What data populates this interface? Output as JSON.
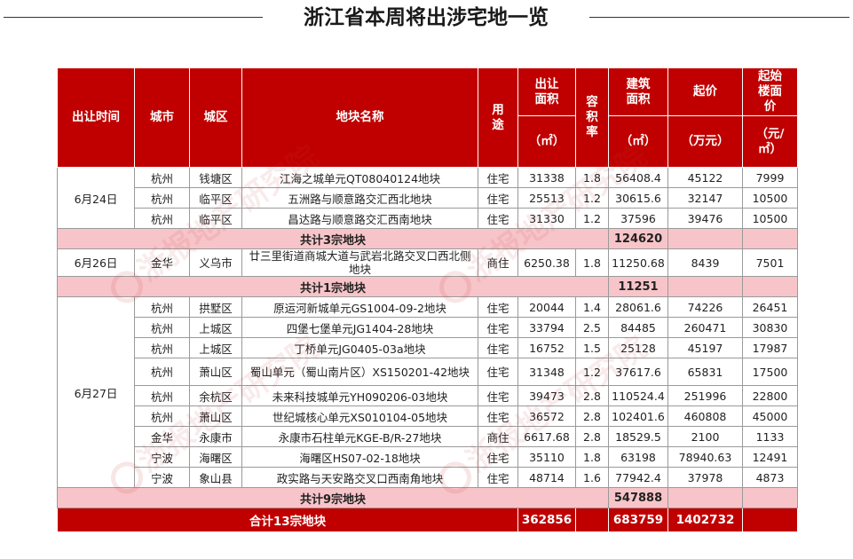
{
  "title": "浙江省本周将出涉宅地一览",
  "watermark": "浙报地产研究院",
  "colors": {
    "header_bg": "#c00000",
    "subtotal_bg": "#f7c5c9"
  },
  "headers": {
    "date": "出让时间",
    "city": "城市",
    "district": "城区",
    "plot_name": "地块名称",
    "usage": "用途",
    "area": "出让面积",
    "area_unit": "（㎡）",
    "far": "容积率",
    "build_area": "建筑面积",
    "build_area_unit": "（㎡）",
    "start_price": "起价",
    "start_price_unit": "（万元）",
    "floor_price": "起始楼面价",
    "floor_price_unit": "（元/㎡）"
  },
  "groups": [
    {
      "date": "6月24日",
      "rows": [
        {
          "city": "杭州",
          "district": "钱塘区",
          "name": "江海之城单元QT08040124地块",
          "usage": "住宅",
          "area": "31338",
          "far": "1.8",
          "build": "56408.4",
          "price": "45122",
          "floor": "7999"
        },
        {
          "city": "杭州",
          "district": "临平区",
          "name": "五洲路与顺意路交汇西北地块",
          "usage": "住宅",
          "area": "25513",
          "far": "1.2",
          "build": "30615.6",
          "price": "32147",
          "floor": "10500"
        },
        {
          "city": "杭州",
          "district": "临平区",
          "name": "昌达路与顺意路交汇西南地块",
          "usage": "住宅",
          "area": "31330",
          "far": "1.2",
          "build": "37596",
          "price": "39476",
          "floor": "10500"
        }
      ],
      "subtotal_label": "共计3宗地块",
      "subtotal_build": "124620"
    },
    {
      "date": "6月26日",
      "rows": [
        {
          "city": "金华",
          "district": "义乌市",
          "name": "廿三里街道商城大道与武岩北路交叉口西北侧地块",
          "usage": "商住",
          "area": "6250.38",
          "far": "1.8",
          "build": "11250.68",
          "price": "8439",
          "floor": "7501"
        }
      ],
      "subtotal_label": "共计1宗地块",
      "subtotal_build": "11251"
    },
    {
      "date": "6月27日",
      "rows": [
        {
          "city": "杭州",
          "district": "拱墅区",
          "name": "原运河新城单元GS1004-09-2地块",
          "usage": "住宅",
          "area": "20044",
          "far": "1.4",
          "build": "28061.6",
          "price": "74226",
          "floor": "26451"
        },
        {
          "city": "杭州",
          "district": "上城区",
          "name": "四堡七堡单元JG1404-28地块",
          "usage": "住宅",
          "area": "33794",
          "far": "2.5",
          "build": "84485",
          "price": "260471",
          "floor": "30830"
        },
        {
          "city": "杭州",
          "district": "上城区",
          "name": "丁桥单元JG0405-03a地块",
          "usage": "住宅",
          "area": "16752",
          "far": "1.5",
          "build": "25128",
          "price": "45197",
          "floor": "17987"
        },
        {
          "city": "杭州",
          "district": "萧山区",
          "name": "蜀山单元（蜀山南片区）XS150201-42地块",
          "usage": "住宅",
          "area": "31348",
          "far": "1.2",
          "build": "37617.6",
          "price": "65831",
          "floor": "17500"
        },
        {
          "city": "杭州",
          "district": "余杭区",
          "name": "未来科技城单元YH090206-03地块",
          "usage": "住宅",
          "area": "39473",
          "far": "2.8",
          "build": "110524.4",
          "price": "251996",
          "floor": "22800"
        },
        {
          "city": "杭州",
          "district": "萧山区",
          "name": "世纪城核心单元XS010104-05地块",
          "usage": "住宅",
          "area": "36572",
          "far": "2.8",
          "build": "102401.6",
          "price": "460808",
          "floor": "45000"
        },
        {
          "city": "金华",
          "district": "永康市",
          "name": "永康市石柱单元KGE-B/R-27地块",
          "usage": "商住",
          "area": "6617.68",
          "far": "2.8",
          "build": "18529.5",
          "price": "2100",
          "floor": "1133"
        },
        {
          "city": "宁波",
          "district": "海曙区",
          "name": "海曙区HS07-02-18地块",
          "usage": "住宅",
          "area": "35110",
          "far": "1.8",
          "build": "63198",
          "price": "78940.63",
          "floor": "12491"
        },
        {
          "city": "宁波",
          "district": "象山县",
          "name": "政实路与天安路交叉口西南角地块",
          "usage": "住宅",
          "area": "48714",
          "far": "1.6",
          "build": "77942.4",
          "price": "37978",
          "floor": "4873"
        }
      ],
      "subtotal_label": "共计9宗地块",
      "subtotal_build": "547888"
    }
  ],
  "total": {
    "label": "合计13宗地块",
    "area": "362856",
    "build": "683759",
    "price": "1402732"
  }
}
